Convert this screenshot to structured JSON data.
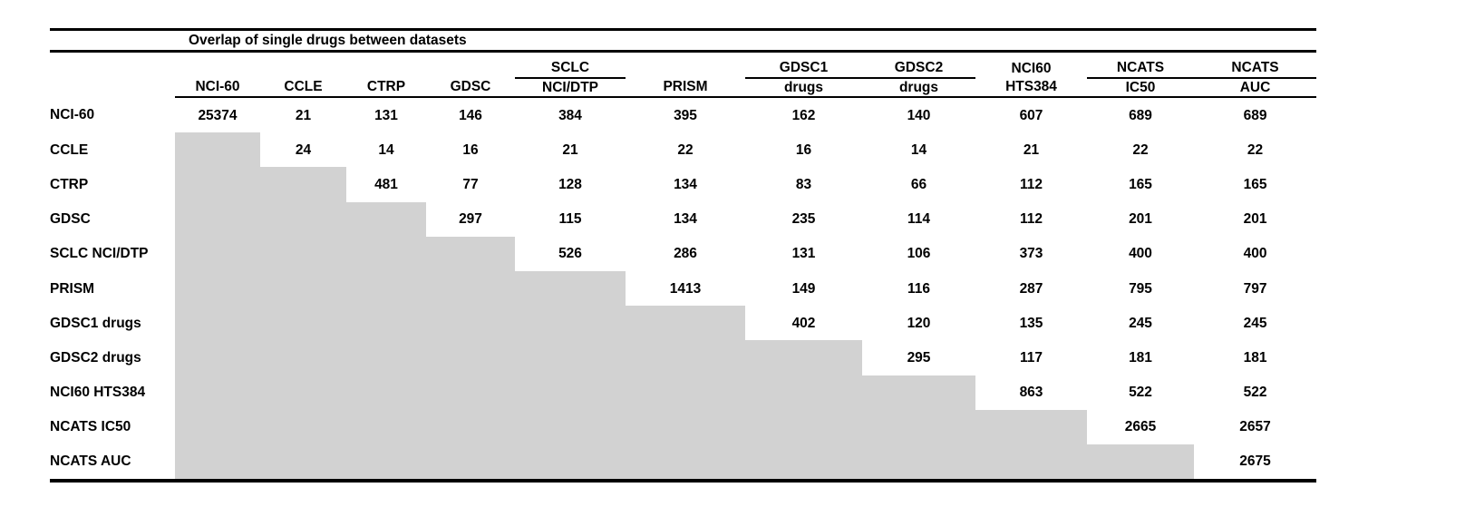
{
  "colors": {
    "background": "#ffffff",
    "text": "#000000",
    "lower_triangle_fill": "#d2d2d2",
    "rule": "#000000"
  },
  "chart_data": {
    "type": "table",
    "title": "Overlap of single drugs between datasets",
    "header_group_row": [
      "",
      "",
      "",
      "",
      "",
      "SCLC",
      "",
      "GDSC1",
      "GDSC2",
      "NCI60",
      "NCATS",
      "NCATS"
    ],
    "header_group_underlined_columns": [
      5,
      7,
      8,
      10,
      11
    ],
    "column_headers": [
      "",
      "NCI-60",
      "CCLE",
      "CTRP",
      "GDSC",
      "NCI/DTP",
      "PRISM",
      "drugs",
      "drugs",
      "HTS384",
      "IC50",
      "AUC"
    ],
    "layout": {
      "lower_triangle": "gray-filled, no values",
      "grid": "off",
      "rules": [
        "top",
        "below-title",
        "below-column-headers",
        "bottom"
      ]
    },
    "rows": [
      {
        "label": "NCI-60",
        "values": [
          25374,
          21,
          131,
          146,
          384,
          395,
          162,
          140,
          607,
          689,
          689
        ]
      },
      {
        "label": "CCLE",
        "values": [
          null,
          24,
          14,
          16,
          21,
          22,
          16,
          14,
          21,
          22,
          22
        ]
      },
      {
        "label": "CTRP",
        "values": [
          null,
          null,
          481,
          77,
          128,
          134,
          83,
          66,
          112,
          165,
          165
        ]
      },
      {
        "label": "GDSC",
        "values": [
          null,
          null,
          null,
          297,
          115,
          134,
          235,
          114,
          112,
          201,
          201
        ]
      },
      {
        "label": "SCLC NCI/DTP",
        "values": [
          null,
          null,
          null,
          null,
          526,
          286,
          131,
          106,
          373,
          400,
          400
        ]
      },
      {
        "label": "PRISM",
        "values": [
          null,
          null,
          null,
          null,
          null,
          1413,
          149,
          116,
          287,
          795,
          797
        ]
      },
      {
        "label": "GDSC1 drugs",
        "values": [
          null,
          null,
          null,
          null,
          null,
          null,
          402,
          120,
          135,
          245,
          245
        ]
      },
      {
        "label": "GDSC2 drugs",
        "values": [
          null,
          null,
          null,
          null,
          null,
          null,
          null,
          295,
          117,
          181,
          181
        ]
      },
      {
        "label": "NCI60 HTS384",
        "values": [
          null,
          null,
          null,
          null,
          null,
          null,
          null,
          null,
          863,
          522,
          522
        ]
      },
      {
        "label": "NCATS IC50",
        "values": [
          null,
          null,
          null,
          null,
          null,
          null,
          null,
          null,
          null,
          2665,
          2657
        ]
      },
      {
        "label": "NCATS AUC",
        "values": [
          null,
          null,
          null,
          null,
          null,
          null,
          null,
          null,
          null,
          null,
          2675
        ]
      }
    ]
  }
}
